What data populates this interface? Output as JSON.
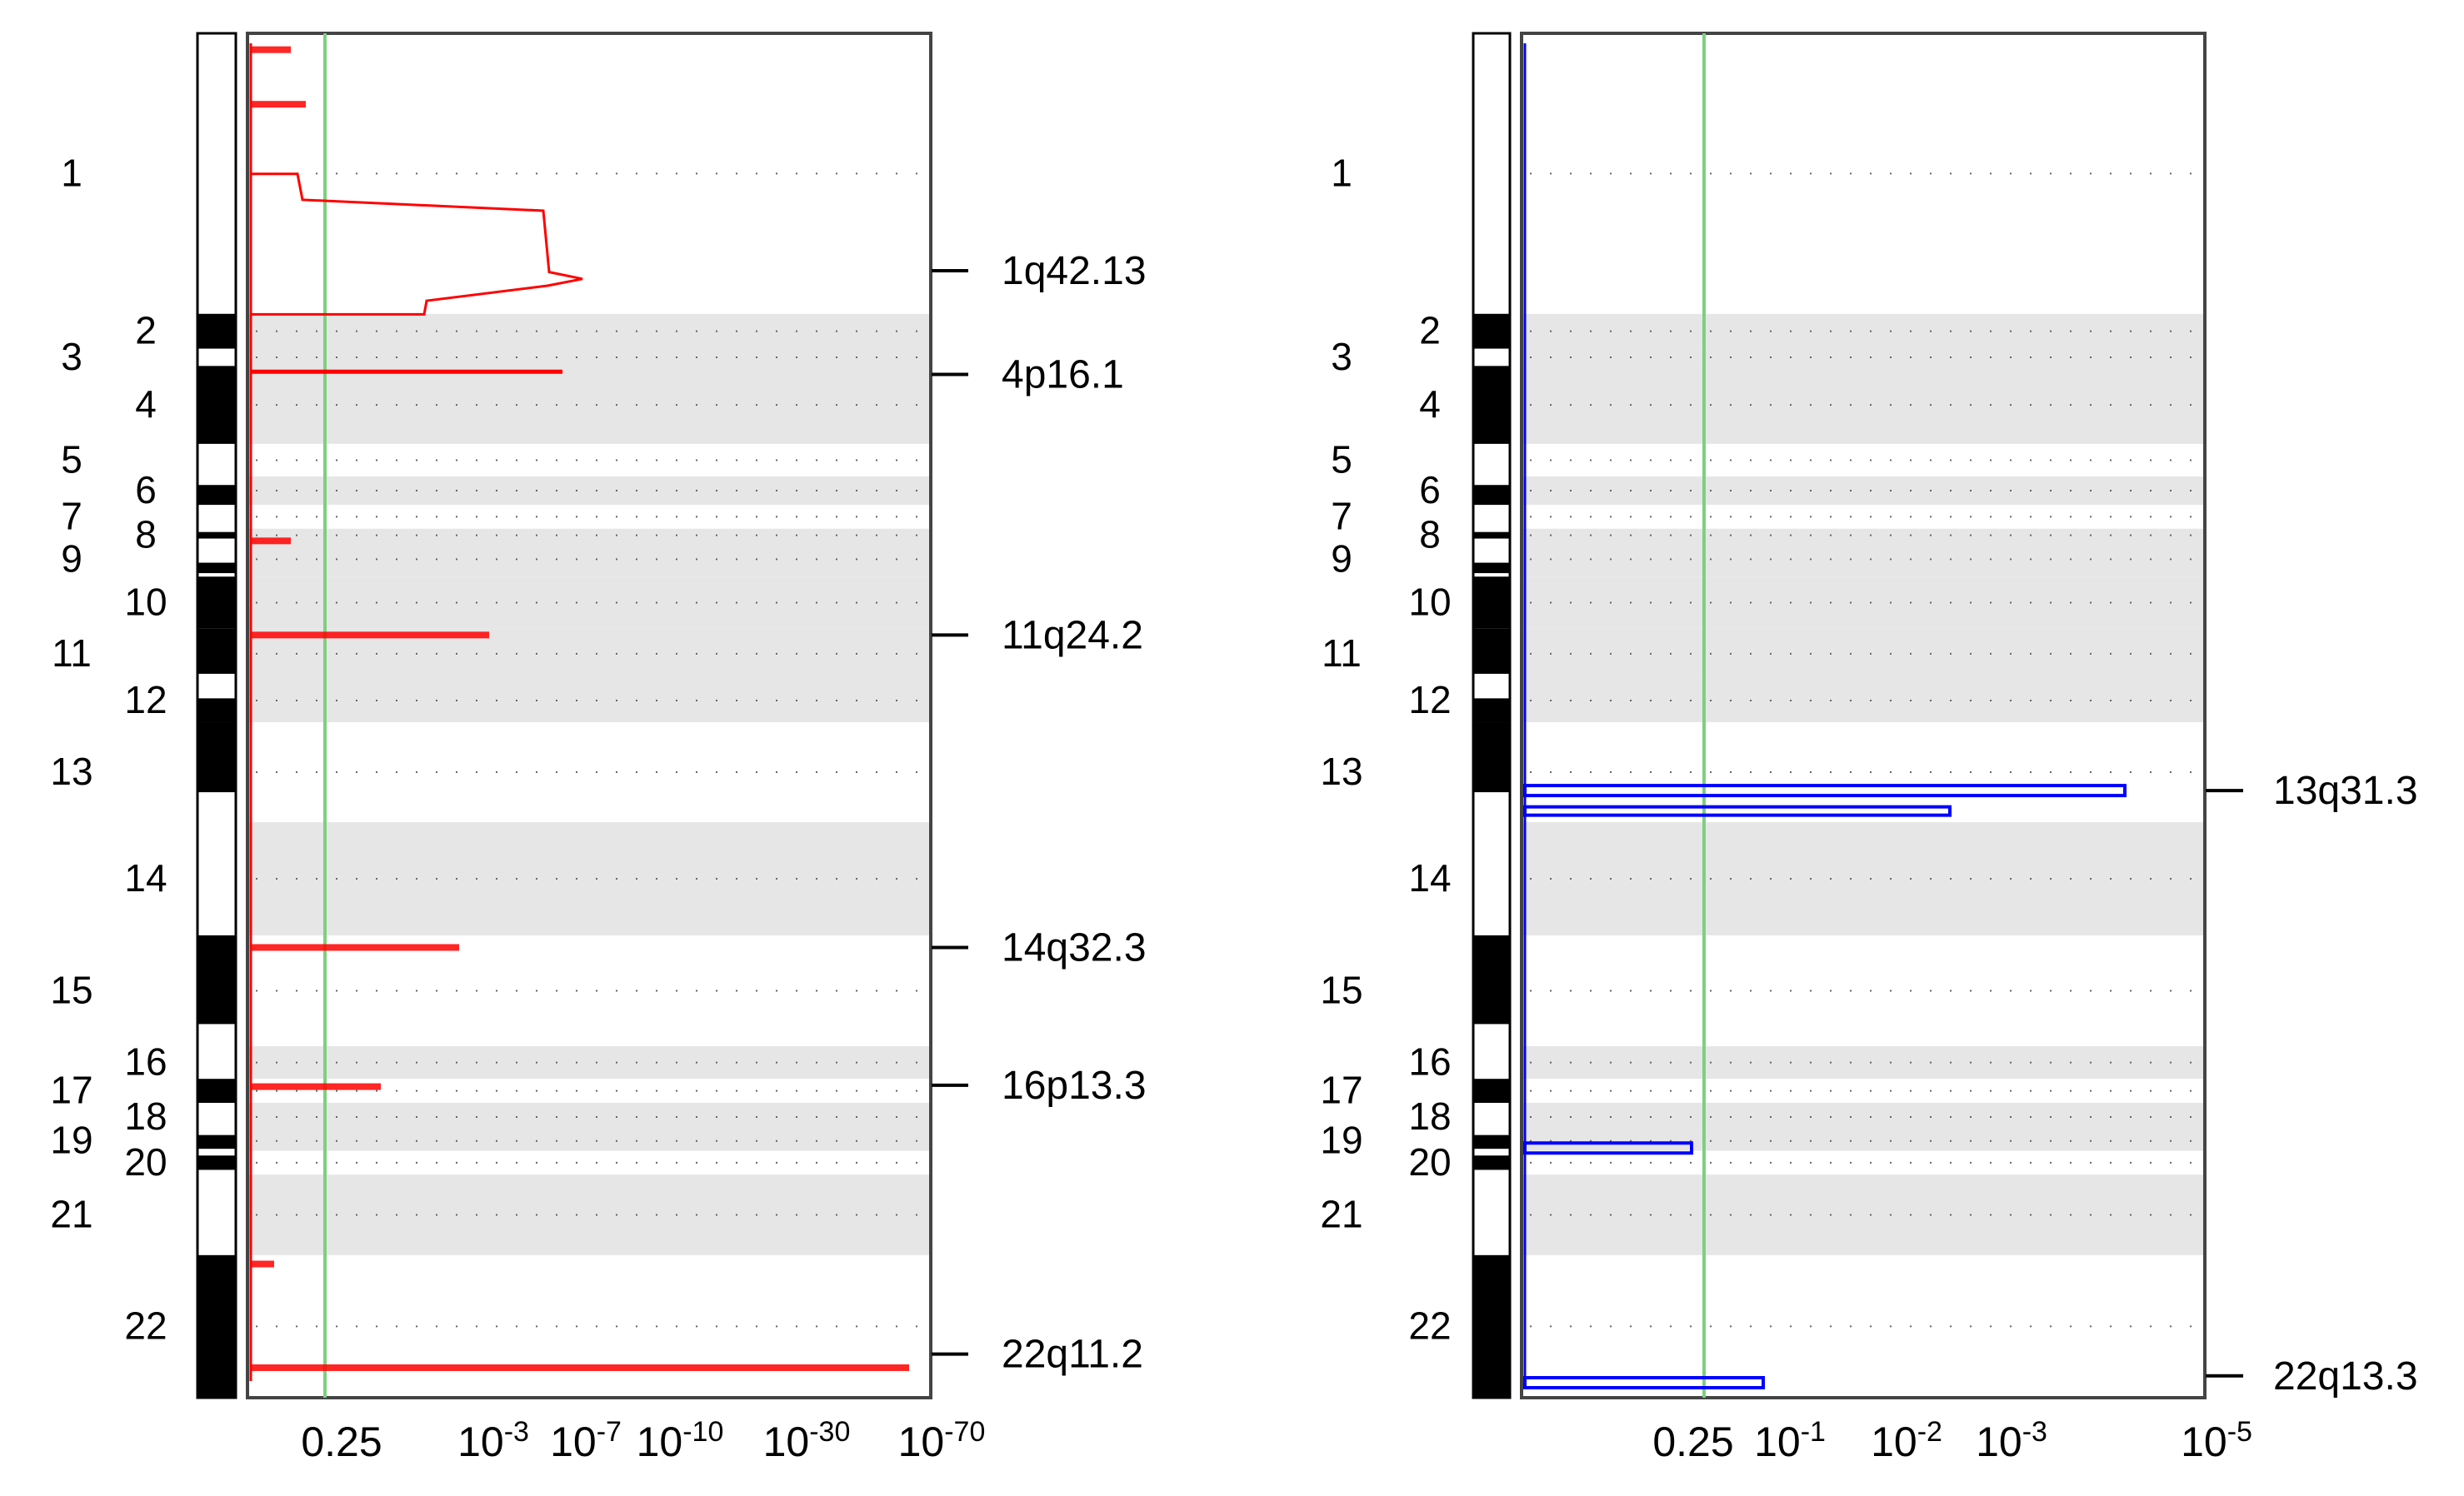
{
  "chart_data": [
    {
      "type": "bar",
      "panel": "left",
      "title": "",
      "xlabel": "",
      "ylabel": "",
      "threshold_line": {
        "value": "0.25",
        "color": "#7fcf7f"
      },
      "x_ticks": [
        "0.25",
        "10-3",
        "10-7",
        "10-10",
        "10-30",
        "10-70"
      ],
      "series_color": "#ff0000",
      "chromosomes": [
        {
          "id": "1",
          "start": 0,
          "end": 0.2056
        },
        {
          "id": "2",
          "start": 0.2056,
          "end": 0.2311
        },
        {
          "id": "3",
          "start": 0.2311,
          "end": 0.2438
        },
        {
          "id": "4",
          "start": 0.2438,
          "end": 0.3009
        },
        {
          "id": "5",
          "start": 0.3009,
          "end": 0.3248
        },
        {
          "id": "6",
          "start": 0.3248,
          "end": 0.3456
        },
        {
          "id": "7",
          "start": 0.3456,
          "end": 0.3631
        },
        {
          "id": "8",
          "start": 0.3631,
          "end": 0.3727
        },
        {
          "id": "9",
          "start": 0.3727,
          "end": 0.3982
        },
        {
          "id": "10",
          "start": 0.3982,
          "end": 0.4364
        },
        {
          "id": "11",
          "start": 0.4364,
          "end": 0.4731
        },
        {
          "id": "12",
          "start": 0.4731,
          "end": 0.5049
        },
        {
          "id": "13",
          "start": 0.5049,
          "end": 0.5782
        },
        {
          "id": "14",
          "start": 0.5782,
          "end": 0.6611
        },
        {
          "id": "15",
          "start": 0.6611,
          "end": 0.7424
        },
        {
          "id": "16",
          "start": 0.7424,
          "end": 0.7663
        },
        {
          "id": "17",
          "start": 0.7663,
          "end": 0.7839
        },
        {
          "id": "18",
          "start": 0.7839,
          "end": 0.8046
        },
        {
          "id": "19",
          "start": 0.8046,
          "end": 0.819
        },
        {
          "id": "20",
          "start": 0.819,
          "end": 0.8365
        },
        {
          "id": "21",
          "start": 0.8365,
          "end": 0.8955
        },
        {
          "id": "22",
          "start": 0.8955,
          "end": 1.0
        }
      ],
      "annotations": [
        {
          "label": "1q42.13",
          "pos": 0.174
        },
        {
          "label": "4p16.1",
          "pos": 0.25
        },
        {
          "label": "11q24.2",
          "pos": 0.441
        },
        {
          "label": "14q32.3",
          "pos": 0.67
        },
        {
          "label": "16p13.3",
          "pos": 0.771
        },
        {
          "label": "22q11.2",
          "pos": 0.968
        }
      ]
    },
    {
      "type": "bar",
      "panel": "right",
      "title": "",
      "xlabel": "",
      "ylabel": "",
      "threshold_line": {
        "value": "0.25",
        "color": "#7fcf7f"
      },
      "x_ticks": [
        "0.25",
        "10-1",
        "10-2",
        "10-3",
        "10-5"
      ],
      "series_color": "#0000ff",
      "chromosomes": [
        {
          "id": "1",
          "start": 0,
          "end": 0.2056
        },
        {
          "id": "2",
          "start": 0.2056,
          "end": 0.2311
        },
        {
          "id": "3",
          "start": 0.2311,
          "end": 0.2438
        },
        {
          "id": "4",
          "start": 0.2438,
          "end": 0.3009
        },
        {
          "id": "5",
          "start": 0.3009,
          "end": 0.3248
        },
        {
          "id": "6",
          "start": 0.3248,
          "end": 0.3456
        },
        {
          "id": "7",
          "start": 0.3456,
          "end": 0.3631
        },
        {
          "id": "8",
          "start": 0.3631,
          "end": 0.3727
        },
        {
          "id": "9",
          "start": 0.3727,
          "end": 0.3982
        },
        {
          "id": "10",
          "start": 0.3982,
          "end": 0.4364
        },
        {
          "id": "11",
          "start": 0.4364,
          "end": 0.4731
        },
        {
          "id": "12",
          "start": 0.4731,
          "end": 0.5049
        },
        {
          "id": "13",
          "start": 0.5049,
          "end": 0.5782
        },
        {
          "id": "14",
          "start": 0.5782,
          "end": 0.6611
        },
        {
          "id": "15",
          "start": 0.6611,
          "end": 0.7424
        },
        {
          "id": "16",
          "start": 0.7424,
          "end": 0.7663
        },
        {
          "id": "17",
          "start": 0.7663,
          "end": 0.7839
        },
        {
          "id": "18",
          "start": 0.7839,
          "end": 0.8046
        },
        {
          "id": "19",
          "start": 0.8046,
          "end": 0.819
        },
        {
          "id": "20",
          "start": 0.819,
          "end": 0.8365
        },
        {
          "id": "21",
          "start": 0.8365,
          "end": 0.8955
        },
        {
          "id": "22",
          "start": 0.8955,
          "end": 1.0
        }
      ],
      "annotations": [
        {
          "label": "13q31.3",
          "pos": 0.555
        },
        {
          "label": "22q13.3",
          "pos": 0.984
        }
      ]
    }
  ]
}
